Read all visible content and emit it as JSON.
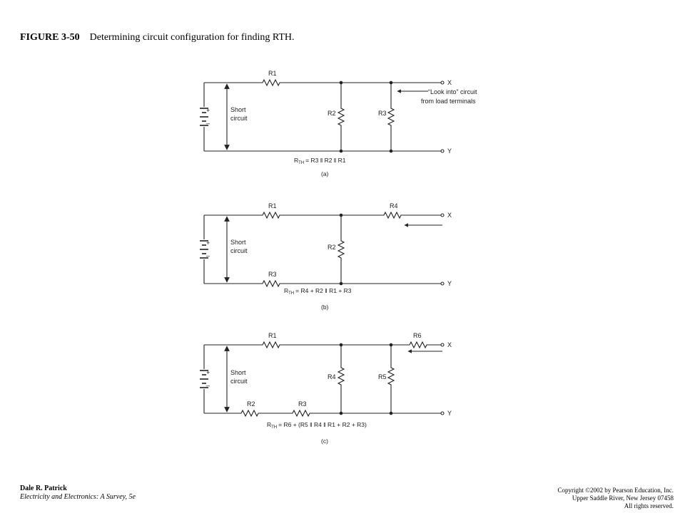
{
  "figure": {
    "number": "FIGURE 3-50",
    "caption": "Determining circuit configuration for finding RTH."
  },
  "panels": [
    {
      "label": "(a)",
      "short_text": [
        "Short",
        "circuit"
      ],
      "resistors": {
        "top": "R1",
        "left_shunt": "R2",
        "right_shunt": "R3"
      },
      "terminals": {
        "top": "X",
        "bottom": "Y"
      },
      "annotation": [
        "“Look into” circuit",
        "from load terminals"
      ],
      "formula": {
        "lhs": "R",
        "lhs_sub": "TH",
        "rhs": "= R3 ‖ R2 ‖ R1"
      }
    },
    {
      "label": "(b)",
      "short_text": [
        "Short",
        "circuit"
      ],
      "resistors": {
        "top": "R1",
        "shunt": "R2",
        "series_out": "R4",
        "bottom": "R3"
      },
      "terminals": {
        "top": "X",
        "bottom": "Y"
      },
      "formula": {
        "lhs": "R",
        "lhs_sub": "TH",
        "rhs": "= R4 + R2 ‖ R1 + R3"
      }
    },
    {
      "label": "(c)",
      "short_text": [
        "Short",
        "circuit"
      ],
      "resistors": {
        "top": "R1",
        "bottom_left": "R2",
        "bottom_right": "R3",
        "left_shunt": "R4",
        "right_shunt": "R5",
        "series_out": "R6"
      },
      "terminals": {
        "top": "X",
        "bottom": "Y"
      },
      "formula": {
        "lhs": "R",
        "lhs_sub": "TH",
        "rhs": "= R6 + (R5 ‖ R4 ‖ R1 + R2 + R3)"
      }
    }
  ],
  "battery": {
    "plus": "+",
    "minus": "–"
  },
  "footer": {
    "author": "Dale R. Patrick",
    "book": "Electricity and Electronics: A Survey, 5e",
    "copyright": "Copyright ©2002 by Pearson Education, Inc.",
    "address": "Upper Saddle River, New Jersey 07458",
    "rights": "All rights reserved."
  }
}
